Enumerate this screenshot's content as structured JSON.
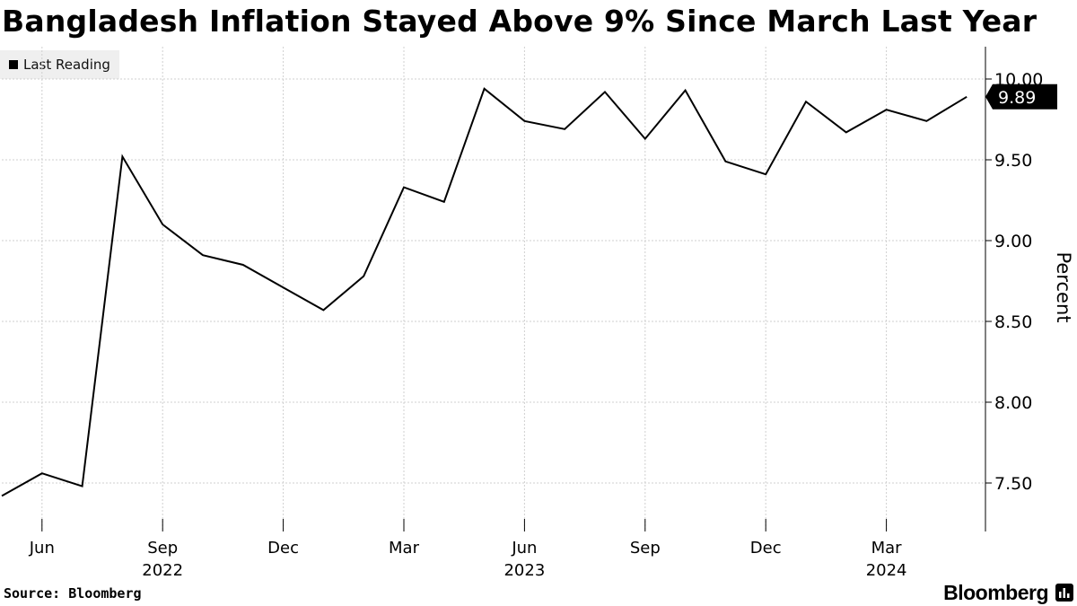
{
  "title": "Bangladesh Inflation Stayed Above 9% Since March Last Year",
  "legend": {
    "label": "Last Reading",
    "color": "#000000"
  },
  "source": "Source: Bloomberg",
  "brand": {
    "name": "Bloomberg",
    "icon": "bloomberg-chart-icon"
  },
  "chart_data": {
    "type": "line",
    "title": "Bangladesh Inflation Stayed Above 9% Since March Last Year",
    "ylabel": "Percent",
    "xlabel": "",
    "ylim": [
      7.2,
      10.2
    ],
    "grid": true,
    "yticks": [
      {
        "value": 7.5,
        "label": "7.50"
      },
      {
        "value": 8.0,
        "label": "8.00"
      },
      {
        "value": 8.5,
        "label": "8.50"
      },
      {
        "value": 9.0,
        "label": "9.00"
      },
      {
        "value": 9.5,
        "label": "9.50"
      },
      {
        "value": 10.0,
        "label": "10.00"
      }
    ],
    "xticks": [
      {
        "index": 1,
        "label": "Jun",
        "year": ""
      },
      {
        "index": 4,
        "label": "Sep",
        "year": "2022"
      },
      {
        "index": 7,
        "label": "Dec",
        "year": ""
      },
      {
        "index": 10,
        "label": "Mar",
        "year": ""
      },
      {
        "index": 13,
        "label": "Jun",
        "year": "2023"
      },
      {
        "index": 16,
        "label": "Sep",
        "year": ""
      },
      {
        "index": 19,
        "label": "Dec",
        "year": ""
      },
      {
        "index": 22,
        "label": "Mar",
        "year": "2024"
      }
    ],
    "series": [
      {
        "name": "Last Reading",
        "color": "#000000",
        "x": [
          "May 2022",
          "Jun 2022",
          "Jul 2022",
          "Aug 2022",
          "Sep 2022",
          "Oct 2022",
          "Nov 2022",
          "Dec 2022",
          "Jan 2023",
          "Feb 2023",
          "Mar 2023",
          "Apr 2023",
          "May 2023",
          "Jun 2023",
          "Jul 2023",
          "Aug 2023",
          "Sep 2023",
          "Oct 2023",
          "Nov 2023",
          "Dec 2023",
          "Jan 2024",
          "Feb 2024",
          "Mar 2024",
          "Apr 2024",
          "May 2024"
        ],
        "values": [
          7.42,
          7.56,
          7.48,
          9.52,
          9.1,
          8.91,
          8.85,
          8.71,
          8.57,
          8.78,
          9.33,
          9.24,
          9.94,
          9.74,
          9.69,
          9.92,
          9.63,
          9.93,
          9.49,
          9.41,
          9.86,
          9.67,
          9.81,
          9.74,
          9.89
        ]
      }
    ],
    "last_value_label": "9.89"
  }
}
